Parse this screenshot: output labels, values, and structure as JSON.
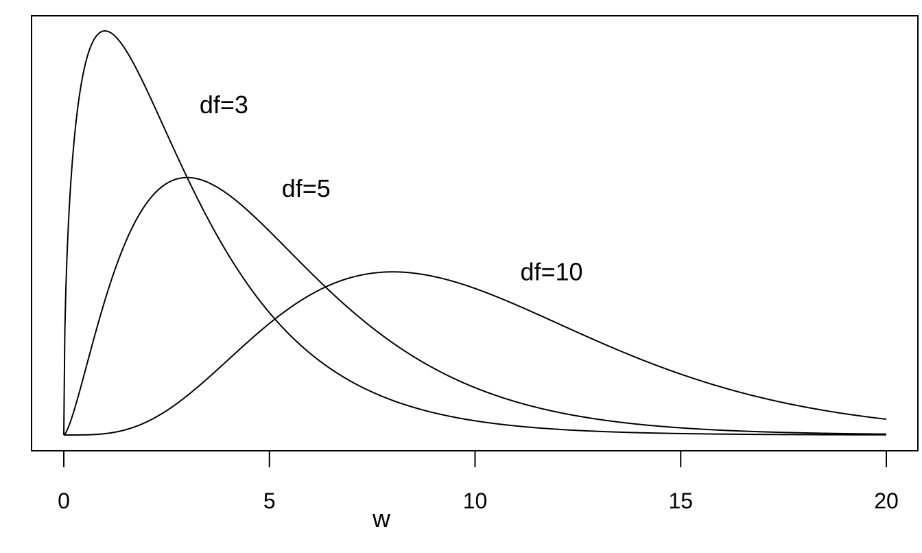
{
  "chart_data": {
    "type": "line",
    "title": "",
    "xlabel": "w",
    "ylabel": "",
    "xlim": [
      0,
      20
    ],
    "ylim": [
      0,
      0.242
    ],
    "x_ticks": [
      0,
      5,
      10,
      15,
      20
    ],
    "x_tick_labels": [
      "0",
      "5",
      "10",
      "15",
      "20"
    ],
    "y_ticks": [],
    "grid": false,
    "legend": "none (inline annotations)",
    "distribution": "chi-square density",
    "x": [
      0,
      0.25,
      0.5,
      0.75,
      1,
      1.5,
      2,
      2.5,
      3,
      3.5,
      4,
      4.5,
      5,
      6,
      7,
      8,
      9,
      10,
      11,
      12,
      13,
      14,
      15,
      16,
      17,
      18,
      19,
      20
    ],
    "series": [
      {
        "name": "df=3",
        "df": 3,
        "values": [
          0,
          0.155,
          0.2197,
          0.2378,
          0.242,
          0.2312,
          0.2076,
          0.1804,
          0.1542,
          0.1304,
          0.108,
          0.0888,
          0.0733,
          0.0487,
          0.0319,
          0.0207,
          0.0133,
          0.0085,
          0.0054,
          0.0034,
          0.0021,
          0.0013,
          0.0008,
          0.0005,
          0.0003,
          0.0002,
          0.0001,
          0.0001
        ]
      },
      {
        "name": "df=5",
        "df": 5,
        "values": [
          0,
          0.0176,
          0.0368,
          0.0529,
          0.0807,
          0.1036,
          0.1384,
          0.1506,
          0.1542,
          0.1525,
          0.1465,
          0.138,
          0.122,
          0.0973,
          0.0744,
          0.0551,
          0.0399,
          0.0283,
          0.0198,
          0.0137,
          0.0093,
          0.0063,
          0.0042,
          0.0028,
          0.0019,
          0.0012,
          0.0008,
          0.0005
        ]
      },
      {
        "name": "df=10",
        "df": 10,
        "values": [
          0,
          0.0,
          0.0001,
          0.0003,
          0.0008,
          0.0035,
          0.0077,
          0.0165,
          0.0252,
          0.0361,
          0.0451,
          0.058,
          0.0668,
          0.084,
          0.0925,
          0.0977,
          0.0948,
          0.0877,
          0.0779,
          0.0669,
          0.056,
          0.0456,
          0.0366,
          0.029,
          0.0227,
          0.0176,
          0.0135,
          0.0104
        ]
      }
    ],
    "annotations": [
      {
        "text": "df=3",
        "x": 3.3,
        "y": 0.198
      },
      {
        "text": "df=5",
        "x": 5.3,
        "y": 0.148
      },
      {
        "text": "df=10",
        "x": 11.1,
        "y": 0.098
      }
    ]
  }
}
